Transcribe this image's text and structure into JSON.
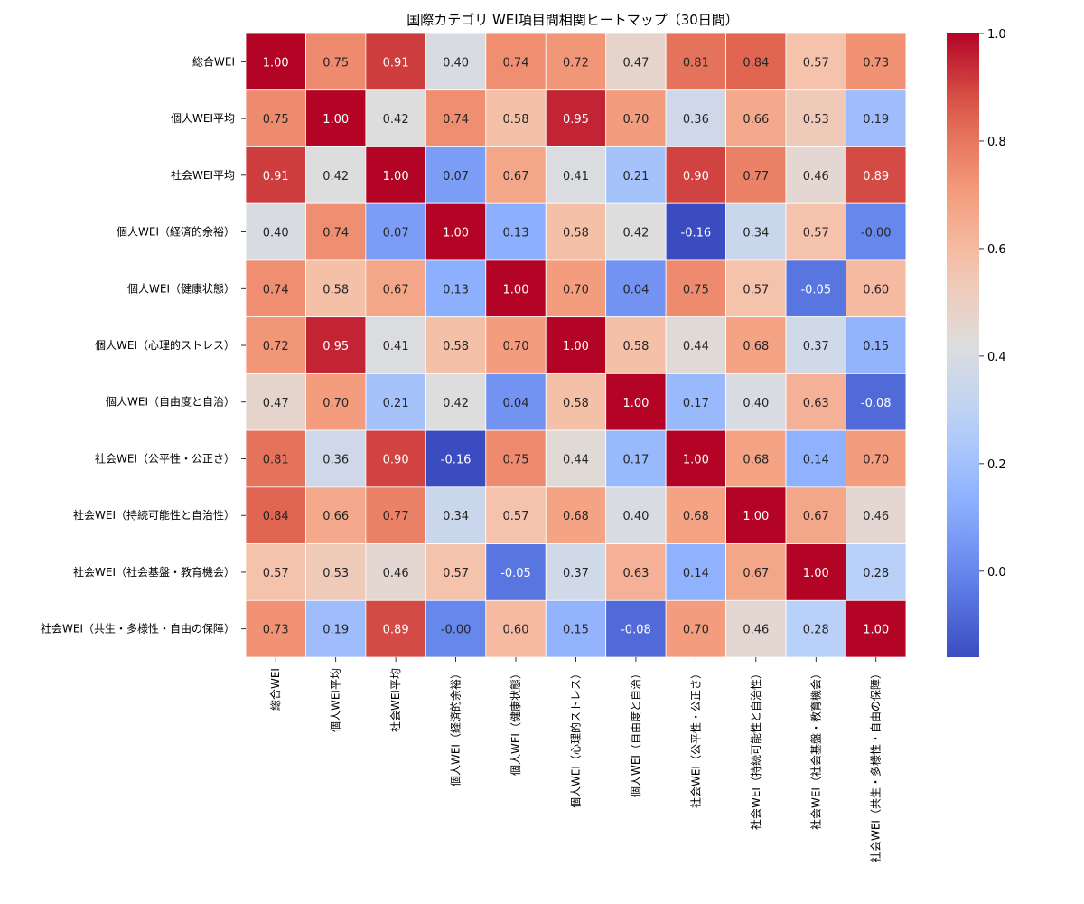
{
  "chart_data": {
    "type": "heatmap",
    "title": "国際カテゴリ WEI項目間相関ヒートマップ（30日間）",
    "labels": [
      "総合WEI",
      "個人WEI平均",
      "社会WEI平均",
      "個人WEI（経済的余裕）",
      "個人WEI（健康状態）",
      "個人WEI（心理的ストレス）",
      "個人WEI（自由度と自治）",
      "社会WEI（公平性・公正さ）",
      "社会WEI（持続可能性と自治性）",
      "社会WEI（社会基盤・教育機会）",
      "社会WEI（共生・多様性・自由の保障）"
    ],
    "matrix": [
      [
        "1.00",
        "0.75",
        "0.91",
        "0.40",
        "0.74",
        "0.72",
        "0.47",
        "0.81",
        "0.84",
        "0.57",
        "0.73"
      ],
      [
        "0.75",
        "1.00",
        "0.42",
        "0.74",
        "0.58",
        "0.95",
        "0.70",
        "0.36",
        "0.66",
        "0.53",
        "0.19"
      ],
      [
        "0.91",
        "0.42",
        "1.00",
        "0.07",
        "0.67",
        "0.41",
        "0.21",
        "0.90",
        "0.77",
        "0.46",
        "0.89"
      ],
      [
        "0.40",
        "0.74",
        "0.07",
        "1.00",
        "0.13",
        "0.58",
        "0.42",
        "-0.16",
        "0.34",
        "0.57",
        "-0.00"
      ],
      [
        "0.74",
        "0.58",
        "0.67",
        "0.13",
        "1.00",
        "0.70",
        "0.04",
        "0.75",
        "0.57",
        "-0.05",
        "0.60"
      ],
      [
        "0.72",
        "0.95",
        "0.41",
        "0.58",
        "0.70",
        "1.00",
        "0.58",
        "0.44",
        "0.68",
        "0.37",
        "0.15"
      ],
      [
        "0.47",
        "0.70",
        "0.21",
        "0.42",
        "0.04",
        "0.58",
        "1.00",
        "0.17",
        "0.40",
        "0.63",
        "-0.08"
      ],
      [
        "0.81",
        "0.36",
        "0.90",
        "-0.16",
        "0.75",
        "0.44",
        "0.17",
        "1.00",
        "0.68",
        "0.14",
        "0.70"
      ],
      [
        "0.84",
        "0.66",
        "0.77",
        "0.34",
        "0.57",
        "0.68",
        "0.40",
        "0.68",
        "1.00",
        "0.67",
        "0.46"
      ],
      [
        "0.57",
        "0.53",
        "0.46",
        "0.57",
        "-0.05",
        "0.37",
        "0.63",
        "0.14",
        "0.67",
        "1.00",
        "0.28"
      ],
      [
        "0.73",
        "0.19",
        "0.89",
        "-0.00",
        "0.60",
        "0.15",
        "-0.08",
        "0.70",
        "0.46",
        "0.28",
        "1.00"
      ]
    ],
    "colormap": "coolwarm",
    "vmin": -0.16,
    "vmax": 1.0,
    "colorbar_ticks": [
      "0.0",
      "0.2",
      "0.4",
      "0.6",
      "0.8",
      "1.0"
    ],
    "grid": false,
    "legend": "colorbar-right"
  }
}
